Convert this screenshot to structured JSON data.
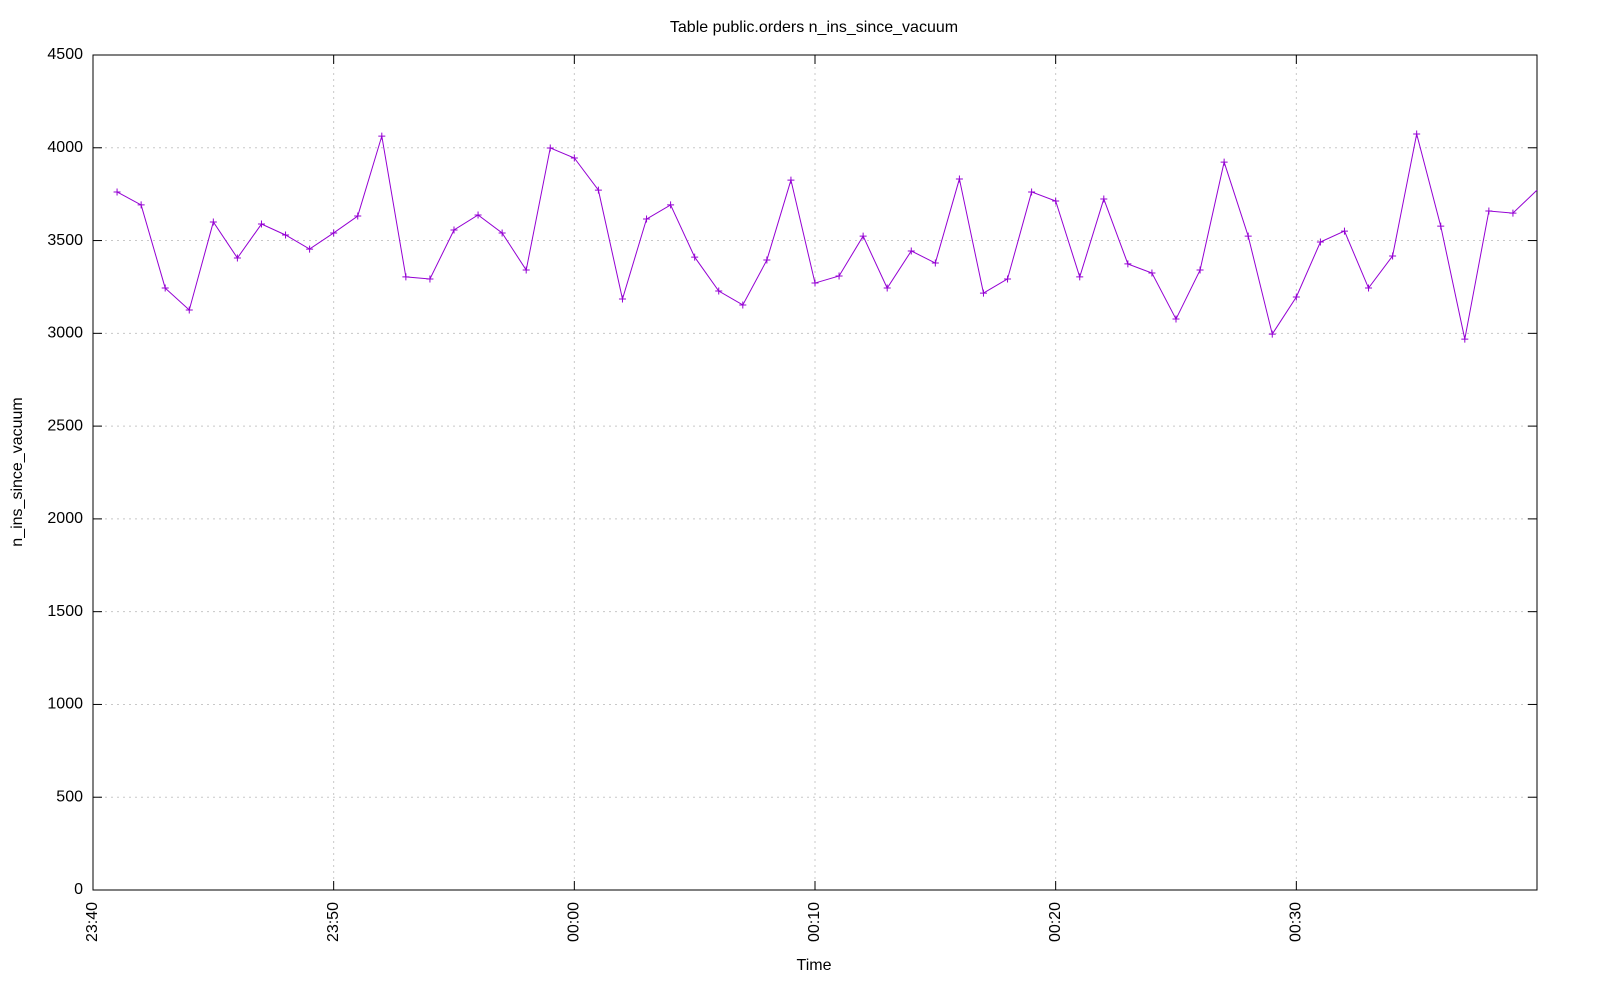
{
  "chart_data": {
    "type": "line",
    "title": "Table public.orders n_ins_since_vacuum",
    "x_label": "Time",
    "y_label": "n_ins_since_vacuum",
    "color": "#9400d3",
    "grid": true,
    "marker": "+",
    "x": [
      "23:41",
      "23:42",
      "23:43",
      "23:44",
      "23:45",
      "23:46",
      "23:47",
      "23:48",
      "23:49",
      "23:50",
      "23:51",
      "23:52",
      "23:53",
      "23:54",
      "23:55",
      "23:56",
      "23:57",
      "23:58",
      "23:59",
      "00:00",
      "00:01",
      "00:02",
      "00:03",
      "00:04",
      "00:05",
      "00:06",
      "00:07",
      "00:08",
      "00:09",
      "00:10",
      "00:11",
      "00:12",
      "00:13",
      "00:14",
      "00:15",
      "00:16",
      "00:17",
      "00:18",
      "00:19",
      "00:20",
      "00:21",
      "00:22",
      "00:23",
      "00:24",
      "00:25",
      "00:26",
      "00:27",
      "00:28",
      "00:29",
      "00:30",
      "00:31",
      "00:32",
      "00:33",
      "00:34",
      "00:35",
      "00:36",
      "00:37",
      "00:38",
      "00:39",
      "00:40"
    ],
    "values": [
      3762,
      3692,
      3244,
      3126,
      3600,
      3406,
      3589,
      3530,
      3454,
      3541,
      3632,
      4063,
      3304,
      3293,
      3557,
      3638,
      3541,
      3341,
      3999,
      3945,
      3772,
      3185,
      3616,
      3692,
      3411,
      3228,
      3153,
      3395,
      3826,
      3271,
      3309,
      3524,
      3244,
      3444,
      3379,
      3832,
      3217,
      3293,
      3762,
      3713,
      3304,
      3724,
      3374,
      3325,
      3077,
      3341,
      3923,
      3524,
      2996,
      3196,
      3492,
      3551,
      3244,
      3417,
      4074,
      3578,
      2969,
      3659,
      3648,
      3772
    ],
    "xlim": [
      "23:40",
      "00:40"
    ],
    "xticks": [
      "23:40",
      "23:50",
      "00:00",
      "00:10",
      "00:20",
      "00:30"
    ],
    "ylim": [
      0,
      4500
    ],
    "yticks": [
      0,
      500,
      1000,
      1500,
      2000,
      2500,
      3000,
      3500,
      4000,
      4500
    ]
  }
}
